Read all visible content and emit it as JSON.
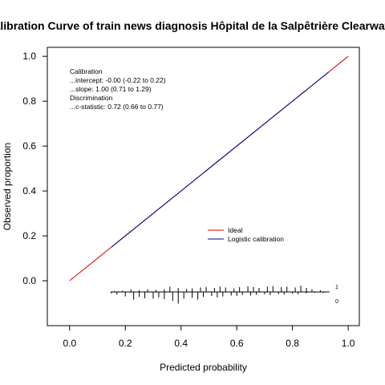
{
  "chart_data": {
    "type": "line",
    "title": "Calibration Curve of train news diagnosis Hôpital de la Salpêtrière Clearwater",
    "xlabel": "Predicted probability",
    "ylabel": "Observed proportion",
    "xlim": [
      -0.08,
      1.04
    ],
    "ylim": [
      -0.2,
      1.04
    ],
    "x_ticks": [
      "0.0",
      "0.2",
      "0.4",
      "0.6",
      "0.8",
      "1.0"
    ],
    "y_ticks": [
      "0.0",
      "0.2",
      "0.4",
      "0.6",
      "0.8",
      "1.0"
    ],
    "grid": false,
    "legend_position": "right-center",
    "series": [
      {
        "name": "Ideal",
        "color": "#e00000",
        "x": [
          0,
          1
        ],
        "y": [
          0,
          1
        ]
      },
      {
        "name": "Logistic calibration",
        "color": "#00008b",
        "x": [
          0.15,
          0.93
        ],
        "y": [
          0.15,
          0.93
        ]
      }
    ],
    "annotations": [
      "Calibration",
      "...intercept: -0.00 (-0.22 to 0.22)",
      "...slope: 1.00 (0.71 to 1.29)",
      "Discrimination",
      "...c-statistic: 0.72 (0.66 to 0.77)"
    ],
    "spike_labels": {
      "upper": "1",
      "lower": "0"
    },
    "spike_baseline": -0.05,
    "spikes_up": [
      {
        "x": 0.16,
        "h": 0.004
      },
      {
        "x": 0.19,
        "h": 0.006
      },
      {
        "x": 0.22,
        "h": 0.012
      },
      {
        "x": 0.25,
        "h": 0.008
      },
      {
        "x": 0.28,
        "h": 0.012
      },
      {
        "x": 0.31,
        "h": 0.01
      },
      {
        "x": 0.34,
        "h": 0.012
      },
      {
        "x": 0.36,
        "h": 0.024
      },
      {
        "x": 0.39,
        "h": 0.018
      },
      {
        "x": 0.42,
        "h": 0.014
      },
      {
        "x": 0.44,
        "h": 0.016
      },
      {
        "x": 0.47,
        "h": 0.02
      },
      {
        "x": 0.49,
        "h": 0.022
      },
      {
        "x": 0.52,
        "h": 0.018
      },
      {
        "x": 0.54,
        "h": 0.024
      },
      {
        "x": 0.56,
        "h": 0.02
      },
      {
        "x": 0.59,
        "h": 0.016
      },
      {
        "x": 0.61,
        "h": 0.022
      },
      {
        "x": 0.64,
        "h": 0.026
      },
      {
        "x": 0.66,
        "h": 0.022
      },
      {
        "x": 0.68,
        "h": 0.018
      },
      {
        "x": 0.71,
        "h": 0.024
      },
      {
        "x": 0.73,
        "h": 0.026
      },
      {
        "x": 0.76,
        "h": 0.022
      },
      {
        "x": 0.78,
        "h": 0.024
      },
      {
        "x": 0.81,
        "h": 0.02
      },
      {
        "x": 0.83,
        "h": 0.028
      },
      {
        "x": 0.85,
        "h": 0.018
      },
      {
        "x": 0.87,
        "h": 0.012
      },
      {
        "x": 0.9,
        "h": 0.008
      }
    ],
    "spikes_down": [
      {
        "x": 0.15,
        "h": 0.006
      },
      {
        "x": 0.17,
        "h": 0.012
      },
      {
        "x": 0.2,
        "h": 0.02
      },
      {
        "x": 0.23,
        "h": 0.034
      },
      {
        "x": 0.25,
        "h": 0.022
      },
      {
        "x": 0.27,
        "h": 0.028
      },
      {
        "x": 0.3,
        "h": 0.03
      },
      {
        "x": 0.32,
        "h": 0.024
      },
      {
        "x": 0.34,
        "h": 0.032
      },
      {
        "x": 0.37,
        "h": 0.04
      },
      {
        "x": 0.39,
        "h": 0.052
      },
      {
        "x": 0.41,
        "h": 0.03
      },
      {
        "x": 0.44,
        "h": 0.026
      },
      {
        "x": 0.46,
        "h": 0.034
      },
      {
        "x": 0.48,
        "h": 0.022
      },
      {
        "x": 0.51,
        "h": 0.018
      },
      {
        "x": 0.53,
        "h": 0.024
      },
      {
        "x": 0.55,
        "h": 0.02
      },
      {
        "x": 0.58,
        "h": 0.016
      },
      {
        "x": 0.6,
        "h": 0.018
      },
      {
        "x": 0.62,
        "h": 0.014
      },
      {
        "x": 0.65,
        "h": 0.016
      },
      {
        "x": 0.67,
        "h": 0.012
      },
      {
        "x": 0.7,
        "h": 0.01
      },
      {
        "x": 0.72,
        "h": 0.014
      },
      {
        "x": 0.75,
        "h": 0.01
      },
      {
        "x": 0.77,
        "h": 0.012
      },
      {
        "x": 0.8,
        "h": 0.008
      },
      {
        "x": 0.82,
        "h": 0.01
      },
      {
        "x": 0.85,
        "h": 0.006
      },
      {
        "x": 0.88,
        "h": 0.004
      },
      {
        "x": 0.91,
        "h": 0.004
      }
    ]
  }
}
